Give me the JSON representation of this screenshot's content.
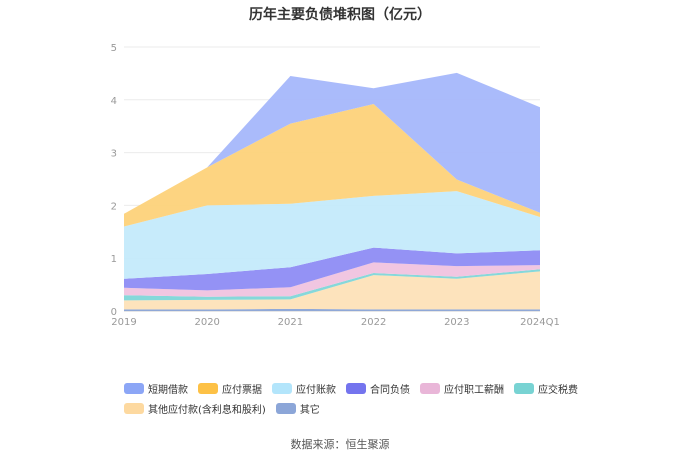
{
  "chart_data": {
    "type": "area",
    "stacked": true,
    "title": "历年主要负债堆积图（亿元）",
    "categories": [
      "2019",
      "2020",
      "2021",
      "2022",
      "2023",
      "2024Q1"
    ],
    "ylim": [
      0,
      5
    ],
    "yticks": [
      "0",
      "1",
      "2",
      "3",
      "4",
      "5"
    ],
    "grid": true,
    "legend_position": "bottom",
    "series": [
      {
        "name": "其它",
        "color": "#8aa4d6",
        "values": [
          0.03,
          0.03,
          0.04,
          0.03,
          0.03,
          0.03
        ]
      },
      {
        "name": "其他应付款(含利息和股利)",
        "color": "#fde2b8",
        "values": [
          0.17,
          0.18,
          0.18,
          0.65,
          0.58,
          0.72
        ]
      },
      {
        "name": "应交税费",
        "color": "#7fd6d8",
        "values": [
          0.1,
          0.06,
          0.06,
          0.04,
          0.04,
          0.04
        ]
      },
      {
        "name": "应付职工薪酬",
        "color": "#f0c3df",
        "values": [
          0.14,
          0.12,
          0.17,
          0.2,
          0.2,
          0.08
        ]
      },
      {
        "name": "合同负债",
        "color": "#8e8cf4",
        "values": [
          0.17,
          0.31,
          0.38,
          0.28,
          0.24,
          0.28
        ]
      },
      {
        "name": "应付账款",
        "color": "#c4eafb",
        "values": [
          0.99,
          1.3,
          1.2,
          0.98,
          1.18,
          0.63
        ]
      },
      {
        "name": "应付票据",
        "color": "#fdd27a",
        "values": [
          0.24,
          0.72,
          1.52,
          1.74,
          0.22,
          0.08
        ]
      },
      {
        "name": "短期借款",
        "color": "#a5b7fb",
        "values": [
          0,
          0,
          0.9,
          0.3,
          2.02,
          2.0
        ]
      }
    ],
    "legend_order": [
      "短期借款",
      "应付票据",
      "应付账款",
      "合同负债",
      "应付职工薪酬",
      "应交税费",
      "其他应付款(含利息和股利)",
      "其它"
    ],
    "legend_colors": {
      "短期借款": "#8ca6f6",
      "应付票据": "#fdc146",
      "应付账款": "#b3e5fb",
      "合同负债": "#7474ee",
      "应付职工薪酬": "#e9b6d8",
      "应交税费": "#78d3d3",
      "其他应付款(含利息和股利)": "#fdd9a0",
      "其它": "#8ca6d8"
    }
  },
  "source": "数据来源：恒生聚源"
}
